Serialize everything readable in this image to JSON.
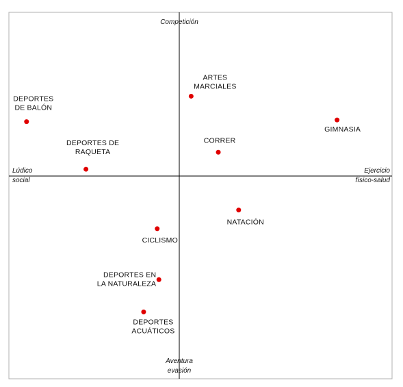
{
  "chart_data": {
    "type": "scatter",
    "title": "",
    "xlim": [
      -1,
      1
    ],
    "ylim": [
      -1,
      1
    ],
    "grid": false,
    "legend": "none",
    "colors": {
      "point": "#e00000",
      "axis": "#000000",
      "frame": "#b0b0b0"
    },
    "axis_labels": {
      "top": "Competición",
      "bottom": [
        "Aventura",
        "evasión"
      ],
      "left": [
        "Lúdico",
        "social"
      ],
      "right": [
        "Ejercicio",
        "físico-salud"
      ]
    },
    "points": [
      {
        "label": [
          "DEPORTES",
          "DE BALÓN"
        ],
        "x": -0.9,
        "y": 0.32
      },
      {
        "label": [
          "DEPORTES DE",
          "RAQUETA"
        ],
        "x": -0.55,
        "y": 0.04
      },
      {
        "label": [
          "ARTES",
          "MARCIALES"
        ],
        "x": 0.07,
        "y": 0.47
      },
      {
        "label": [
          "CORRER"
        ],
        "x": 0.23,
        "y": 0.14
      },
      {
        "label": [
          "GIMNASIA"
        ],
        "x": 0.93,
        "y": 0.33
      },
      {
        "label": [
          "NATACIÓN"
        ],
        "x": 0.35,
        "y": -0.2
      },
      {
        "label": [
          "CICLISMO"
        ],
        "x": -0.13,
        "y": -0.31
      },
      {
        "label": [
          "DEPORTES EN",
          "LA NATURALEZA"
        ],
        "x": -0.12,
        "y": -0.61
      },
      {
        "label": [
          "DEPORTES",
          "ACUÁTICOS"
        ],
        "x": -0.21,
        "y": -0.8
      }
    ]
  }
}
